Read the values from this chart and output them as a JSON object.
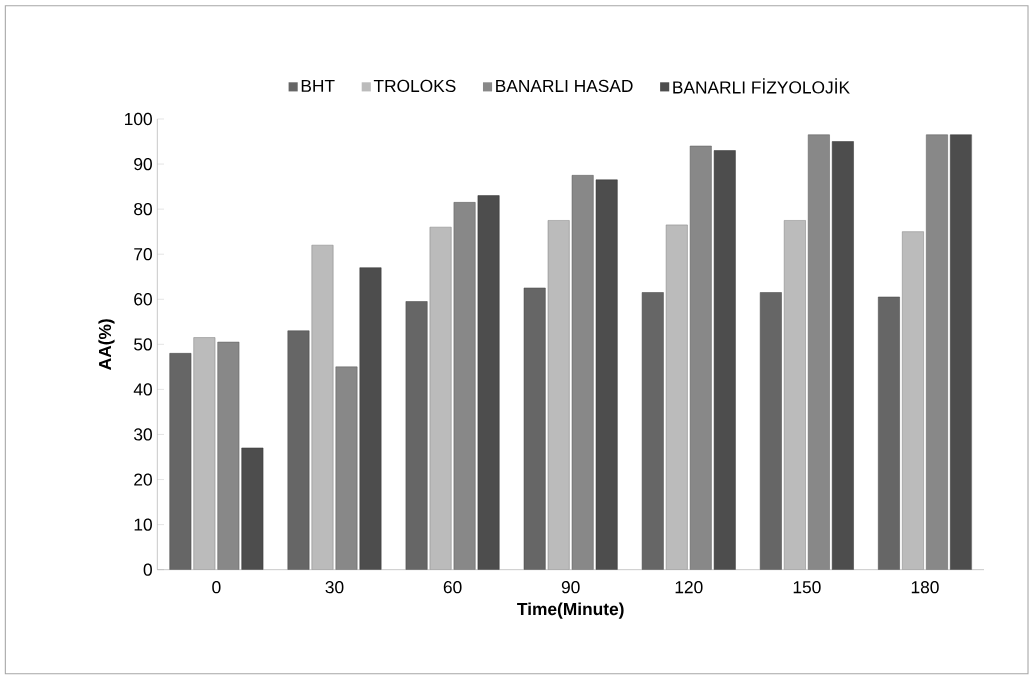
{
  "chart_data": {
    "type": "bar",
    "xlabel": "Time(Minute)",
    "ylabel": "AA(%)",
    "categories": [
      "0",
      "30",
      "60",
      "90",
      "120",
      "150",
      "180"
    ],
    "series": [
      {
        "name": "BHT",
        "color": "#666666",
        "values": [
          48,
          53,
          59.5,
          62.5,
          61.5,
          61.5,
          60.5
        ]
      },
      {
        "name": "TROLOKS",
        "color": "#bbbbbb",
        "values": [
          51.5,
          72,
          76,
          77.5,
          76.5,
          77.5,
          75
        ]
      },
      {
        "name": "BANARLI HASAD",
        "color": "#888888",
        "values": [
          50.5,
          45,
          81.5,
          87.5,
          94,
          96.5,
          96.5
        ]
      },
      {
        "name": "BANARLI FİZYOLOJİK",
        "color": "#4d4d4d",
        "values": [
          27,
          67,
          83,
          86.5,
          93,
          95,
          96.5
        ]
      }
    ],
    "ylim": [
      0,
      100
    ],
    "yticks": [
      0,
      10,
      20,
      30,
      40,
      50,
      60,
      70,
      80,
      90,
      100
    ],
    "legend": "top",
    "grid": false
  }
}
